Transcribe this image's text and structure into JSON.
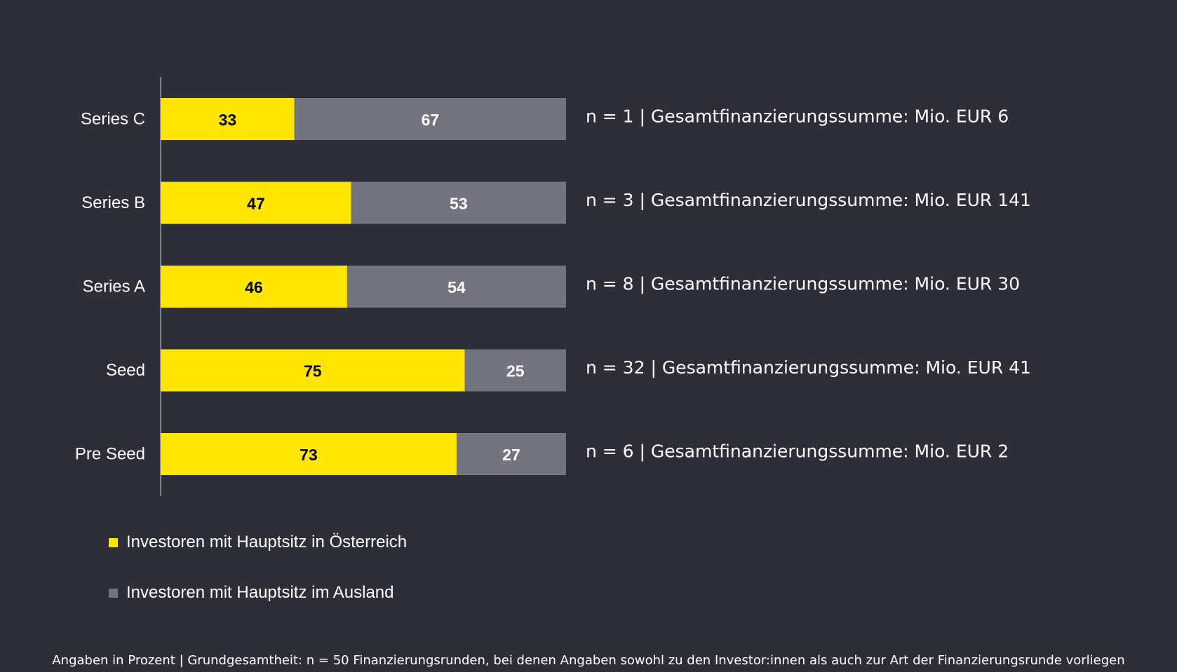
{
  "chart_data": {
    "type": "bar",
    "orientation": "horizontal",
    "stacked": true,
    "categories": [
      "Series C",
      "Series B",
      "Series A",
      "Seed",
      "Pre Seed"
    ],
    "series": [
      {
        "name": "Investoren mit Hauptsitz in Österreich",
        "color": "#ffe600",
        "label_color": "#000000",
        "values": [
          33,
          47,
          46,
          75,
          73
        ]
      },
      {
        "name": "Investoren mit Hauptsitz im Ausland",
        "color": "#747480",
        "label_color": "#ffffff",
        "values": [
          67,
          53,
          54,
          25,
          27
        ]
      }
    ],
    "annotations": [
      "n = 1 | Gesamtfinanzierungssumme: Mio. EUR 6",
      "n = 3 | Gesamtfinanzierungssumme: Mio. EUR 141",
      "n = 8 | Gesamtfinanzierungssumme: Mio. EUR 30",
      "n = 32 | Gesamtfinanzierungssumme: Mio. EUR 41",
      "n = 6 | Gesamtfinanzierungssumme: Mio. EUR 2"
    ],
    "xlim": [
      0,
      100
    ],
    "grid": false,
    "legend_position": "bottom-left",
    "footnote": "Angaben in Prozent  |  Grundgesamtheit: n = 50 Finanzierungsrunden, bei denen Angaben sowohl zu den Investor:innen als auch zur Art der Finanzierungsrunde vorliegen"
  },
  "colors": {
    "background": "#2e2e38",
    "axis": "#9a9aa2"
  }
}
